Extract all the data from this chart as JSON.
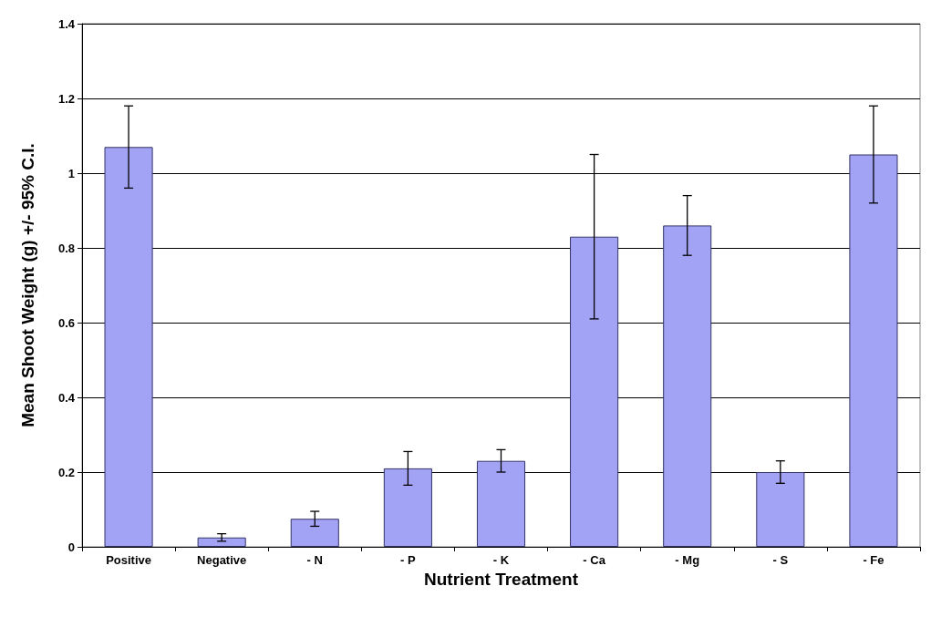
{
  "chart_data": {
    "type": "bar",
    "xlabel": "Nutrient Treatment",
    "ylabel": "Mean Shoot Weight (g) +/- 95% C.I.",
    "categories": [
      "Positive",
      "Negative",
      "- N",
      "- P",
      "- K",
      "- Ca",
      "- Mg",
      "- S",
      "- Fe"
    ],
    "values": [
      1.07,
      0.025,
      0.075,
      0.21,
      0.23,
      0.83,
      0.86,
      0.2,
      1.05
    ],
    "errors": [
      0.11,
      0.01,
      0.02,
      0.045,
      0.03,
      0.22,
      0.08,
      0.03,
      0.13
    ],
    "color": "#a3a3f5",
    "ylim": [
      0,
      1.4
    ],
    "yticks": [
      0,
      0.2,
      0.4,
      0.6,
      0.8,
      1,
      1.2,
      1.4
    ],
    "grid": "y"
  }
}
